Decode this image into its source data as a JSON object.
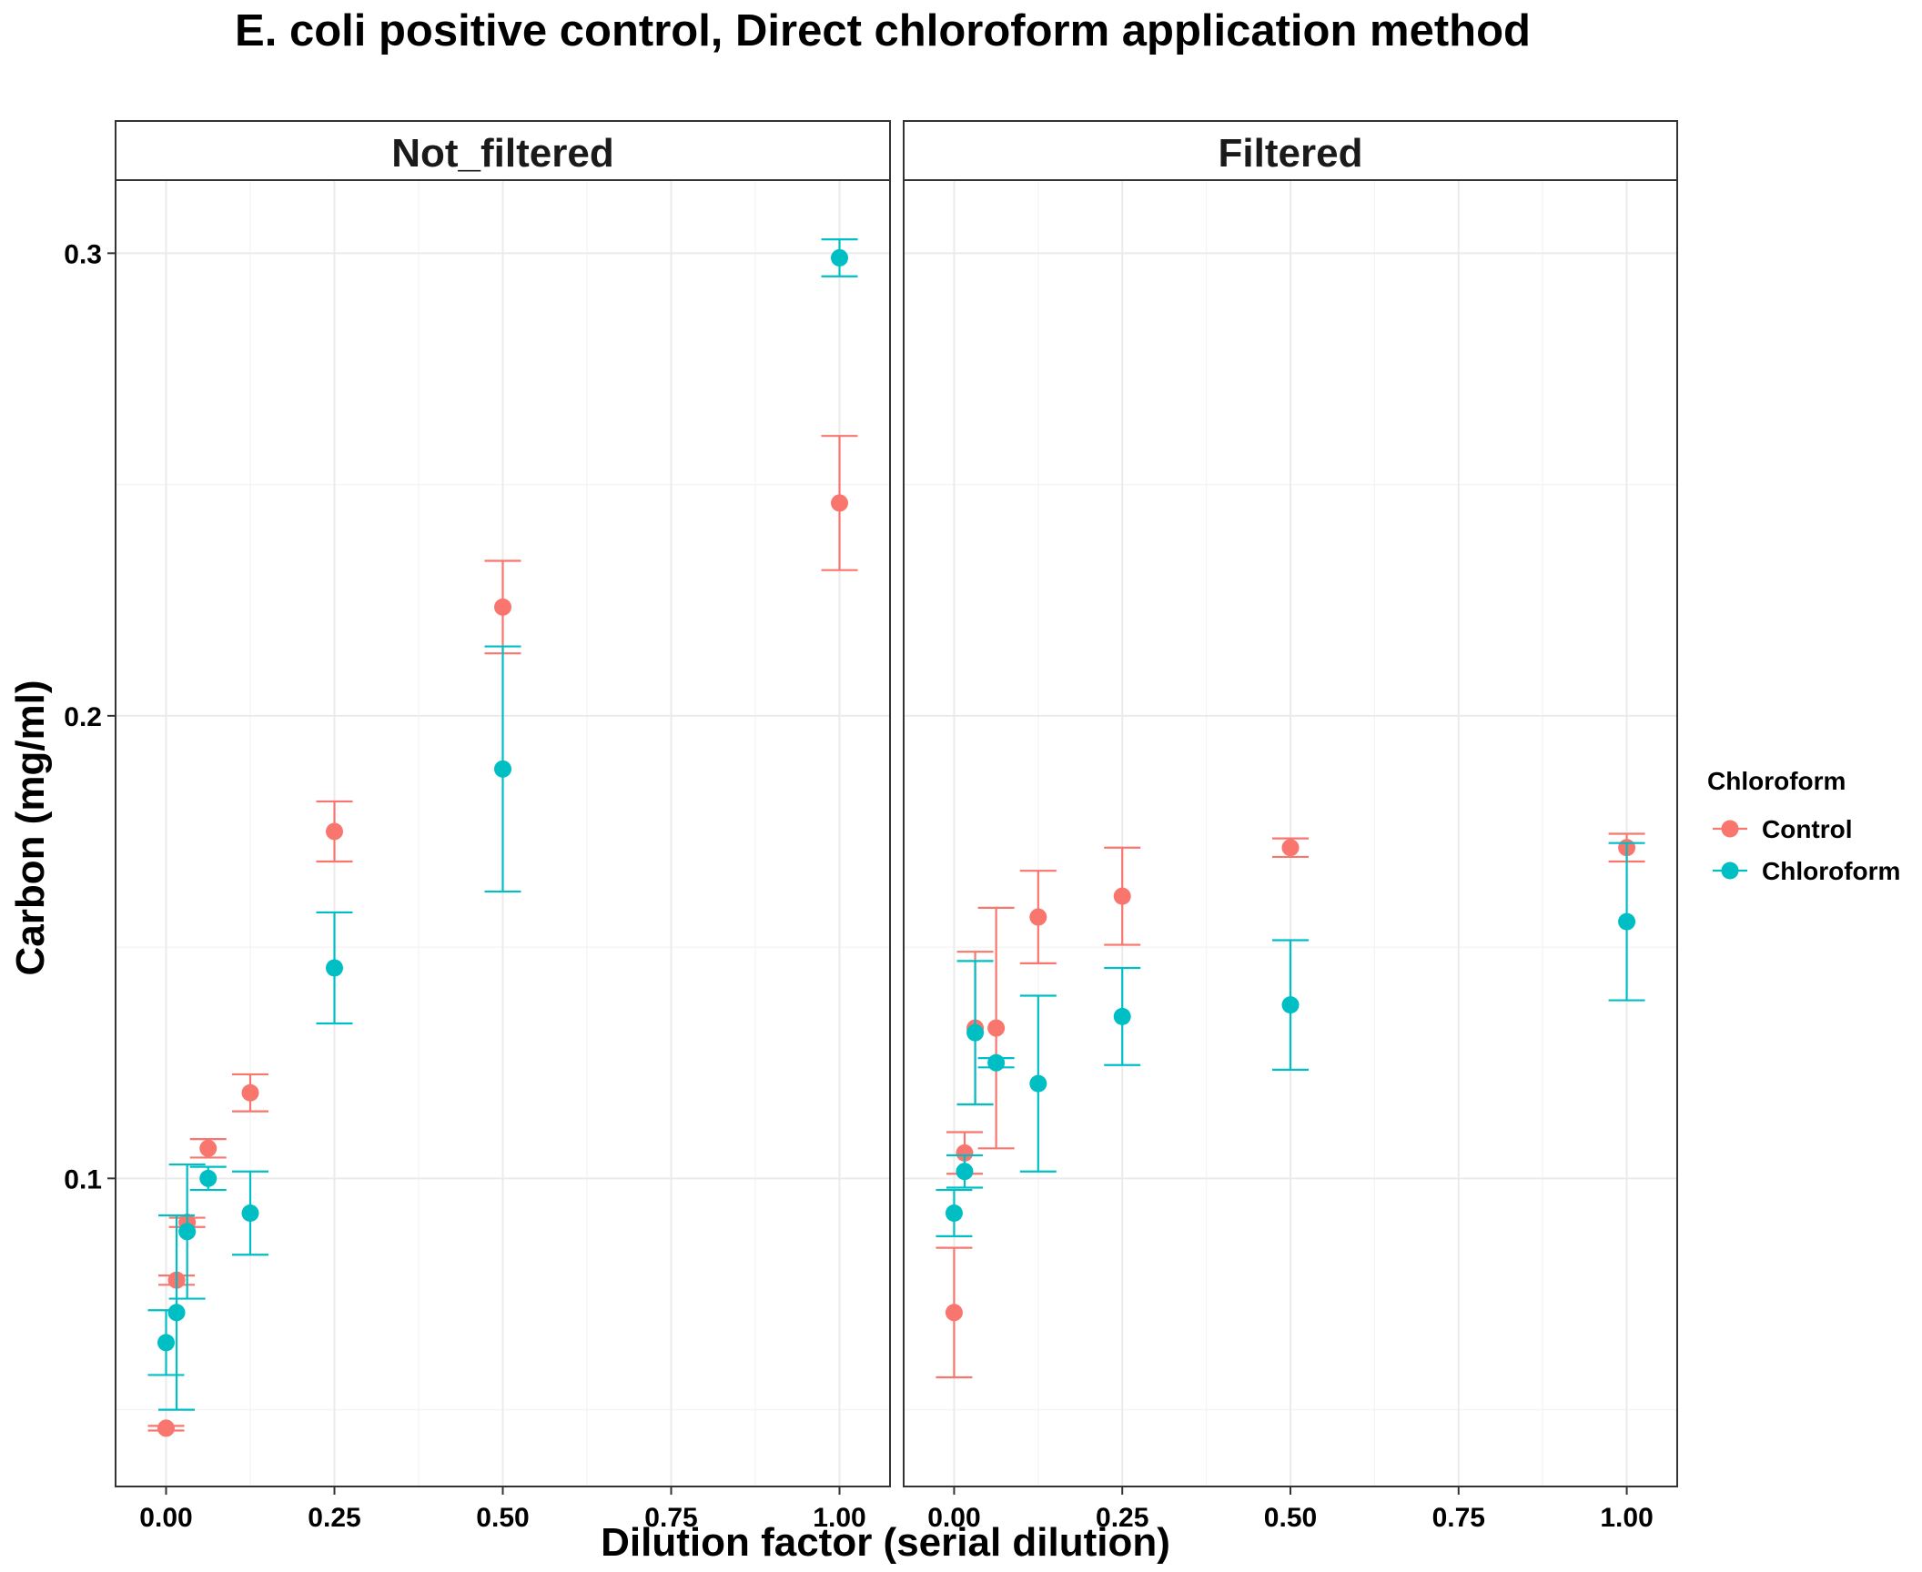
{
  "chart_data": {
    "type": "scatter",
    "title": "E. coli positive control, Direct chloroform application method",
    "xlabel": "Dilution factor (serial dilution)",
    "ylabel": "Carbon (mg/ml)",
    "xlim": [
      -0.075,
      1.075
    ],
    "ylim": [
      0.0334,
      0.3158
    ],
    "x_ticks": [
      0,
      0.25,
      0.5,
      0.75,
      1
    ],
    "x_tick_labels": [
      "0.00",
      "0.25",
      "0.50",
      "0.75",
      "1.00"
    ],
    "y_ticks": [
      0.1,
      0.2,
      0.3
    ],
    "y_tick_labels": [
      "0.1",
      "0.2",
      "0.3"
    ],
    "grid": true,
    "legend": {
      "title": "Chloroform",
      "placement": "right",
      "items": [
        {
          "label": "Control",
          "color": "#F8766D"
        },
        {
          "label": "Chloroform",
          "color": "#00BFC4"
        }
      ]
    },
    "panels": [
      {
        "label": "Not_filtered",
        "series": [
          {
            "name": "Control",
            "color": "#F8766D",
            "points": [
              {
                "x": 0.0,
                "y": 0.046,
                "lo": 0.0455,
                "hi": 0.0465
              },
              {
                "x": 0.0156,
                "y": 0.078,
                "lo": 0.077,
                "hi": 0.079
              },
              {
                "x": 0.0313,
                "y": 0.0905,
                "lo": 0.0895,
                "hi": 0.0915
              },
              {
                "x": 0.0625,
                "y": 0.1065,
                "lo": 0.1045,
                "hi": 0.1085
              },
              {
                "x": 0.125,
                "y": 0.1185,
                "lo": 0.1145,
                "hi": 0.1225
              },
              {
                "x": 0.25,
                "y": 0.175,
                "lo": 0.1685,
                "hi": 0.1815
              },
              {
                "x": 0.5,
                "y": 0.2235,
                "lo": 0.2135,
                "hi": 0.2335
              },
              {
                "x": 1.0,
                "y": 0.246,
                "lo": 0.2315,
                "hi": 0.2605
              }
            ]
          },
          {
            "name": "Chloroform",
            "color": "#00BFC4",
            "points": [
              {
                "x": 0.0,
                "y": 0.0645,
                "lo": 0.0575,
                "hi": 0.0715
              },
              {
                "x": 0.0156,
                "y": 0.071,
                "lo": 0.05,
                "hi": 0.092
              },
              {
                "x": 0.0313,
                "y": 0.0885,
                "lo": 0.074,
                "hi": 0.103
              },
              {
                "x": 0.0625,
                "y": 0.1,
                "lo": 0.0975,
                "hi": 0.1025
              },
              {
                "x": 0.125,
                "y": 0.0925,
                "lo": 0.0835,
                "hi": 0.1015
              },
              {
                "x": 0.25,
                "y": 0.1455,
                "lo": 0.1335,
                "hi": 0.1575
              },
              {
                "x": 0.5,
                "y": 0.1885,
                "lo": 0.162,
                "hi": 0.215
              },
              {
                "x": 1.0,
                "y": 0.299,
                "lo": 0.295,
                "hi": 0.303
              }
            ]
          }
        ]
      },
      {
        "label": "Filtered",
        "series": [
          {
            "name": "Control",
            "color": "#F8766D",
            "points": [
              {
                "x": 0.0,
                "y": 0.071,
                "lo": 0.057,
                "hi": 0.085
              },
              {
                "x": 0.0156,
                "y": 0.1055,
                "lo": 0.101,
                "hi": 0.11
              },
              {
                "x": 0.0313,
                "y": 0.1325,
                "lo": 0.116,
                "hi": 0.149
              },
              {
                "x": 0.0625,
                "y": 0.1325,
                "lo": 0.1065,
                "hi": 0.1585
              },
              {
                "x": 0.125,
                "y": 0.1565,
                "lo": 0.1465,
                "hi": 0.1665
              },
              {
                "x": 0.25,
                "y": 0.161,
                "lo": 0.1505,
                "hi": 0.1715
              },
              {
                "x": 0.5,
                "y": 0.1715,
                "lo": 0.1695,
                "hi": 0.1735
              },
              {
                "x": 1.0,
                "y": 0.1715,
                "lo": 0.1685,
                "hi": 0.1745
              }
            ]
          },
          {
            "name": "Chloroform",
            "color": "#00BFC4",
            "points": [
              {
                "x": 0.0,
                "y": 0.0925,
                "lo": 0.0875,
                "hi": 0.0975
              },
              {
                "x": 0.0156,
                "y": 0.1015,
                "lo": 0.098,
                "hi": 0.105
              },
              {
                "x": 0.0313,
                "y": 0.1315,
                "lo": 0.116,
                "hi": 0.147
              },
              {
                "x": 0.0625,
                "y": 0.125,
                "lo": 0.124,
                "hi": 0.126
              },
              {
                "x": 0.125,
                "y": 0.1205,
                "lo": 0.1015,
                "hi": 0.1395
              },
              {
                "x": 0.25,
                "y": 0.135,
                "lo": 0.1245,
                "hi": 0.1455
              },
              {
                "x": 0.5,
                "y": 0.1375,
                "lo": 0.1235,
                "hi": 0.1515
              },
              {
                "x": 1.0,
                "y": 0.1555,
                "lo": 0.1385,
                "hi": 0.1725
              }
            ]
          }
        ]
      }
    ]
  }
}
